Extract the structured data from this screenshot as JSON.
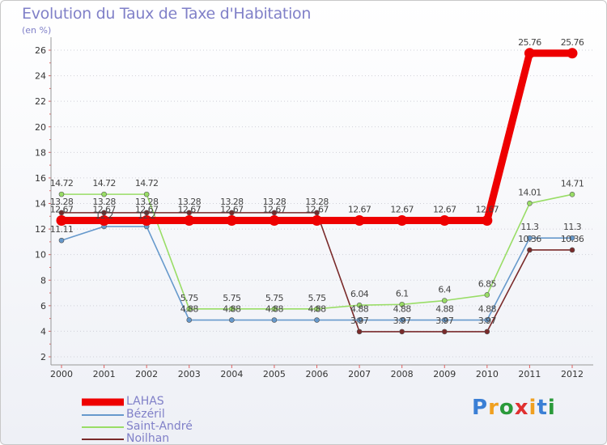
{
  "header": {
    "title": "Evolution du Taux de Taxe d'Habitation",
    "unit": "(en %)"
  },
  "logo": {
    "text": "Proxiti",
    "letters": [
      "P",
      "r",
      "o",
      "x",
      "i",
      "t",
      "i"
    ],
    "colors": [
      "#3a7fd5",
      "#f0a020",
      "#2a9a3a",
      "#e03030",
      "#f0a020",
      "#3a7fd5",
      "#2a9a3a"
    ]
  },
  "chart_data": {
    "type": "line",
    "title": "Evolution du Taux de Taxe d'Habitation",
    "ylabel": "(en %)",
    "xlabel": "",
    "ylim": [
      2,
      26
    ],
    "yticks": [
      2,
      4,
      6,
      8,
      10,
      12,
      14,
      16,
      18,
      20,
      22,
      24,
      26
    ],
    "x": [
      "2000",
      "2001",
      "2002",
      "2003",
      "2004",
      "2005",
      "2006",
      "2007",
      "2008",
      "2009",
      "2010",
      "2011",
      "2012"
    ],
    "grid": "horizontal dotted",
    "legend_position": "bottom-left",
    "series": [
      {
        "name": "Noilhan",
        "color": "#7a2a2a",
        "values": [
          13.28,
          13.28,
          13.28,
          13.28,
          13.28,
          13.28,
          13.28,
          3.97,
          3.97,
          3.97,
          3.97,
          10.36,
          10.36
        ],
        "labels": [
          "13.28",
          "13.28",
          "13.28",
          "13.28",
          "13.28",
          "13.28",
          "13.28",
          "3.97",
          "3.97",
          "3.97",
          "3.97",
          "10.36",
          "10.36"
        ]
      },
      {
        "name": "Saint-André",
        "color": "#99dd66",
        "values": [
          14.72,
          14.72,
          14.72,
          5.75,
          5.75,
          5.75,
          5.75,
          6.04,
          6.1,
          6.4,
          6.85,
          14.01,
          14.71
        ],
        "labels": [
          "14.72",
          "14.72",
          "14.72",
          "5.75",
          "5.75",
          "5.75",
          "5.75",
          "6.04",
          "6.1",
          "6.4",
          "6.85",
          "14.01",
          "14.71"
        ]
      },
      {
        "name": "Bézéril",
        "color": "#6699cc",
        "values": [
          11.11,
          12.2,
          12.2,
          4.88,
          4.88,
          4.88,
          4.88,
          4.88,
          4.88,
          4.88,
          4.88,
          11.3,
          11.3
        ],
        "labels": [
          "11.11",
          "12.2",
          "12.2",
          "4.88",
          "4.88",
          "4.88",
          "4.88",
          "4.88",
          "4.88",
          "4.88",
          "4.88",
          "11.3",
          "11.3"
        ]
      },
      {
        "name": "LAHAS",
        "color": "#ee0000",
        "values": [
          12.67,
          12.67,
          12.67,
          12.67,
          12.67,
          12.67,
          12.67,
          12.67,
          12.67,
          12.67,
          12.67,
          25.76,
          25.76
        ],
        "labels": [
          "12.67",
          "12.67",
          "12.67",
          "12.67",
          "12.67",
          "12.67",
          "12.67",
          "12.67",
          "12.67",
          "12.67",
          "12.67",
          "25.76",
          "25.76"
        ]
      }
    ],
    "legend": [
      "LAHAS",
      "Bézéril",
      "Saint-André",
      "Noilhan"
    ]
  }
}
